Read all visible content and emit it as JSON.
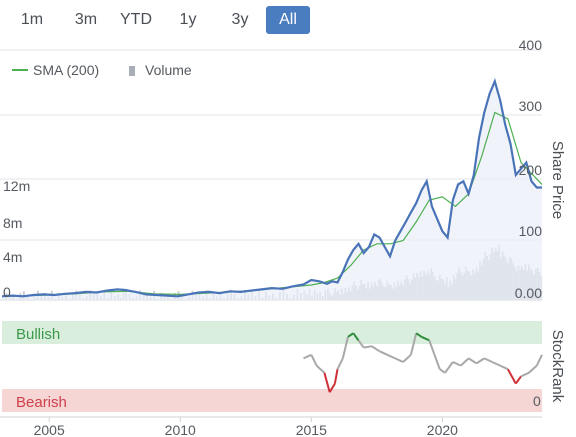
{
  "range_buttons": [
    {
      "label": "1m",
      "active": false
    },
    {
      "label": "3m",
      "active": false
    },
    {
      "label": "YTD",
      "active": false
    },
    {
      "label": "1y",
      "active": false
    },
    {
      "label": "3y",
      "active": false
    },
    {
      "label": "All",
      "active": true
    }
  ],
  "colors": {
    "price": "#4a74b8",
    "sma": "#4caf50",
    "volume": "#c9ccd4",
    "bullish_band": "#d9eedd",
    "bearish_band": "#f6d5d5",
    "bullish_text": "#3c9a4a",
    "bearish_text": "#d0404a",
    "rank_line": "#a8a8a8",
    "rank_high": "#2e8b3a",
    "rank_low": "#d0303a",
    "active_button": "#4a7cc0"
  },
  "chart_data": [
    {
      "type": "line",
      "legend": [
        {
          "name": "SMA (200)",
          "icon": "line-icon"
        },
        {
          "name": "Volume",
          "icon": "bar-icon"
        }
      ],
      "legend_position": "top-left",
      "ylabel_right": "Share Price",
      "y_right_ticks": [
        "400",
        "300",
        "200",
        "100",
        "0.00"
      ],
      "y_left_ticks": [
        "12m",
        "8m",
        "4m",
        "0"
      ],
      "ylim_price": [
        0,
        400
      ],
      "ylim_volume": [
        0,
        16
      ],
      "grid": true,
      "series": [
        {
          "name": "Share Price",
          "x": [
            2003.2,
            2003.6,
            2004,
            2004.4,
            2004.8,
            2005.2,
            2005.6,
            2006,
            2006.4,
            2006.8,
            2007.2,
            2007.6,
            2007.9,
            2008.3,
            2008.7,
            2009.1,
            2009.5,
            2009.9,
            2010.3,
            2010.7,
            2011.1,
            2011.5,
            2011.9,
            2012.3,
            2012.7,
            2013.1,
            2013.5,
            2013.9,
            2014.3,
            2014.7,
            2015,
            2015.3,
            2015.6,
            2015.8,
            2016,
            2016.2,
            2016.4,
            2016.6,
            2016.8,
            2017,
            2017.2,
            2017.4,
            2017.6,
            2017.8,
            2018,
            2018.2,
            2018.4,
            2018.6,
            2018.8,
            2019,
            2019.2,
            2019.4,
            2019.6,
            2019.8,
            2020,
            2020.2,
            2020.4,
            2020.6,
            2020.8,
            2021,
            2021.2,
            2021.4,
            2021.6,
            2021.8,
            2022,
            2022.2,
            2022.4,
            2022.6,
            2022.8,
            2023,
            2023.2,
            2023.4,
            2023.6,
            2023.8
          ],
          "y": [
            6,
            7,
            6,
            8,
            9,
            8,
            10,
            11,
            13,
            12,
            15,
            17,
            16,
            13,
            9,
            8,
            7,
            6,
            9,
            12,
            13,
            11,
            14,
            13,
            15,
            17,
            19,
            18,
            22,
            25,
            32,
            30,
            26,
            30,
            28,
            45,
            65,
            80,
            90,
            75,
            85,
            105,
            100,
            85,
            70,
            95,
            110,
            125,
            140,
            155,
            175,
            190,
            150,
            130,
            110,
            100,
            160,
            185,
            190,
            170,
            200,
            260,
            300,
            330,
            350,
            320,
            280,
            250,
            200,
            210,
            220,
            190,
            180,
            180
          ]
        },
        {
          "name": "SMA (200)",
          "x": [
            2003.2,
            2004,
            2005,
            2006,
            2007,
            2008,
            2009,
            2010,
            2011,
            2012,
            2013,
            2014,
            2015,
            2015.5,
            2016,
            2016.5,
            2017,
            2017.5,
            2018,
            2018.5,
            2019,
            2019.5,
            2020,
            2020.5,
            2021,
            2021.5,
            2022,
            2022.5,
            2023,
            2023.8
          ],
          "y": [
            6,
            6.5,
            8,
            10,
            13,
            14,
            10,
            9,
            11,
            13,
            16,
            20,
            24,
            28,
            35,
            55,
            80,
            90,
            90,
            95,
            125,
            160,
            165,
            150,
            170,
            230,
            300,
            290,
            220,
            185
          ]
        }
      ]
    },
    {
      "type": "line",
      "name": "StockRank",
      "ylabel_right": "StockRank",
      "y_right_ticks": [
        "0"
      ],
      "bands": [
        {
          "label": "Bullish",
          "from": 80,
          "to": 100
        },
        {
          "label": "Bearish",
          "from": 0,
          "to": 20
        }
      ],
      "x": [
        2014.7,
        2015,
        2015.2,
        2015.5,
        2015.7,
        2015.9,
        2016,
        2016.2,
        2016.4,
        2016.6,
        2016.8,
        2017,
        2017.3,
        2017.6,
        2017.9,
        2018.2,
        2018.5,
        2018.8,
        2019,
        2019.2,
        2019.5,
        2019.7,
        2019.9,
        2020.1,
        2020.4,
        2020.7,
        2021,
        2021.3,
        2021.6,
        2021.9,
        2022.2,
        2022.5,
        2022.8,
        2023,
        2023.3,
        2023.6,
        2023.8
      ],
      "y": [
        55,
        60,
        45,
        35,
        8,
        20,
        40,
        55,
        85,
        90,
        80,
        70,
        72,
        65,
        60,
        55,
        50,
        60,
        90,
        85,
        80,
        60,
        40,
        35,
        50,
        45,
        55,
        48,
        55,
        50,
        45,
        40,
        20,
        30,
        35,
        45,
        60
      ]
    }
  ],
  "x_axis": {
    "ticks": [
      "2005",
      "2010",
      "2015",
      "2020"
    ],
    "tick_values": [
      2005,
      2010,
      2015,
      2020
    ],
    "xlim": [
      2003.2,
      2023.8
    ]
  }
}
